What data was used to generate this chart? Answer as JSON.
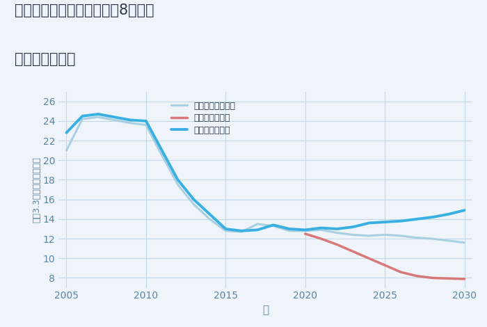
{
  "title_line1": "三重県名張市つつじが丘北8番町の",
  "title_line2": "土地の価格推移",
  "xlabel": "年",
  "ylabel": "坪（3.3㎡）単価（万円）",
  "background_color": "#eef4fa",
  "plot_bg_color": "#eef4fa",
  "ylim": [
    7,
    27
  ],
  "yticks": [
    8,
    10,
    12,
    14,
    16,
    18,
    20,
    22,
    24,
    26
  ],
  "xlim": [
    2004.5,
    2030.5
  ],
  "xticks": [
    2005,
    2010,
    2015,
    2020,
    2025,
    2030
  ],
  "grid_color": "#c5d8e8",
  "good_scenario": {
    "label": "グッドシナリオ",
    "color": "#3ab0e2",
    "linewidth": 2.8,
    "x": [
      2005,
      2006,
      2007,
      2008,
      2009,
      2010,
      2011,
      2012,
      2013,
      2014,
      2015,
      2016,
      2017,
      2018,
      2019,
      2020,
      2021,
      2022,
      2023,
      2024,
      2025,
      2026,
      2027,
      2028,
      2029,
      2030
    ],
    "y": [
      22.8,
      24.5,
      24.7,
      24.4,
      24.1,
      24.0,
      21.0,
      18.0,
      16.0,
      14.5,
      13.0,
      12.8,
      12.9,
      13.4,
      13.0,
      12.9,
      13.1,
      13.0,
      13.2,
      13.6,
      13.7,
      13.8,
      14.0,
      14.2,
      14.5,
      14.9
    ]
  },
  "bad_scenario": {
    "label": "バッドシナリオ",
    "color": "#d87878",
    "linewidth": 2.5,
    "x": [
      2020,
      2021,
      2022,
      2023,
      2024,
      2025,
      2026,
      2027,
      2028,
      2029,
      2030
    ],
    "y": [
      12.5,
      12.0,
      11.4,
      10.7,
      10.0,
      9.3,
      8.6,
      8.2,
      8.0,
      7.95,
      7.9
    ]
  },
  "normal_scenario": {
    "label": "ノーマルシナリオ",
    "color": "#a8d0e0",
    "linewidth": 2.2,
    "x": [
      2005,
      2006,
      2007,
      2008,
      2009,
      2010,
      2011,
      2012,
      2013,
      2014,
      2015,
      2016,
      2017,
      2018,
      2019,
      2020,
      2021,
      2022,
      2023,
      2024,
      2025,
      2026,
      2027,
      2028,
      2029,
      2030
    ],
    "y": [
      21.0,
      24.2,
      24.4,
      24.1,
      23.8,
      23.6,
      20.5,
      17.5,
      15.5,
      14.0,
      12.8,
      12.7,
      13.5,
      13.3,
      12.8,
      12.8,
      12.9,
      12.6,
      12.4,
      12.3,
      12.4,
      12.3,
      12.1,
      12.0,
      11.8,
      11.6
    ]
  },
  "title_color": "#2e3a4a",
  "tick_color": "#5b85a0",
  "title_fontsize": 15,
  "legend_fontsize": 9
}
